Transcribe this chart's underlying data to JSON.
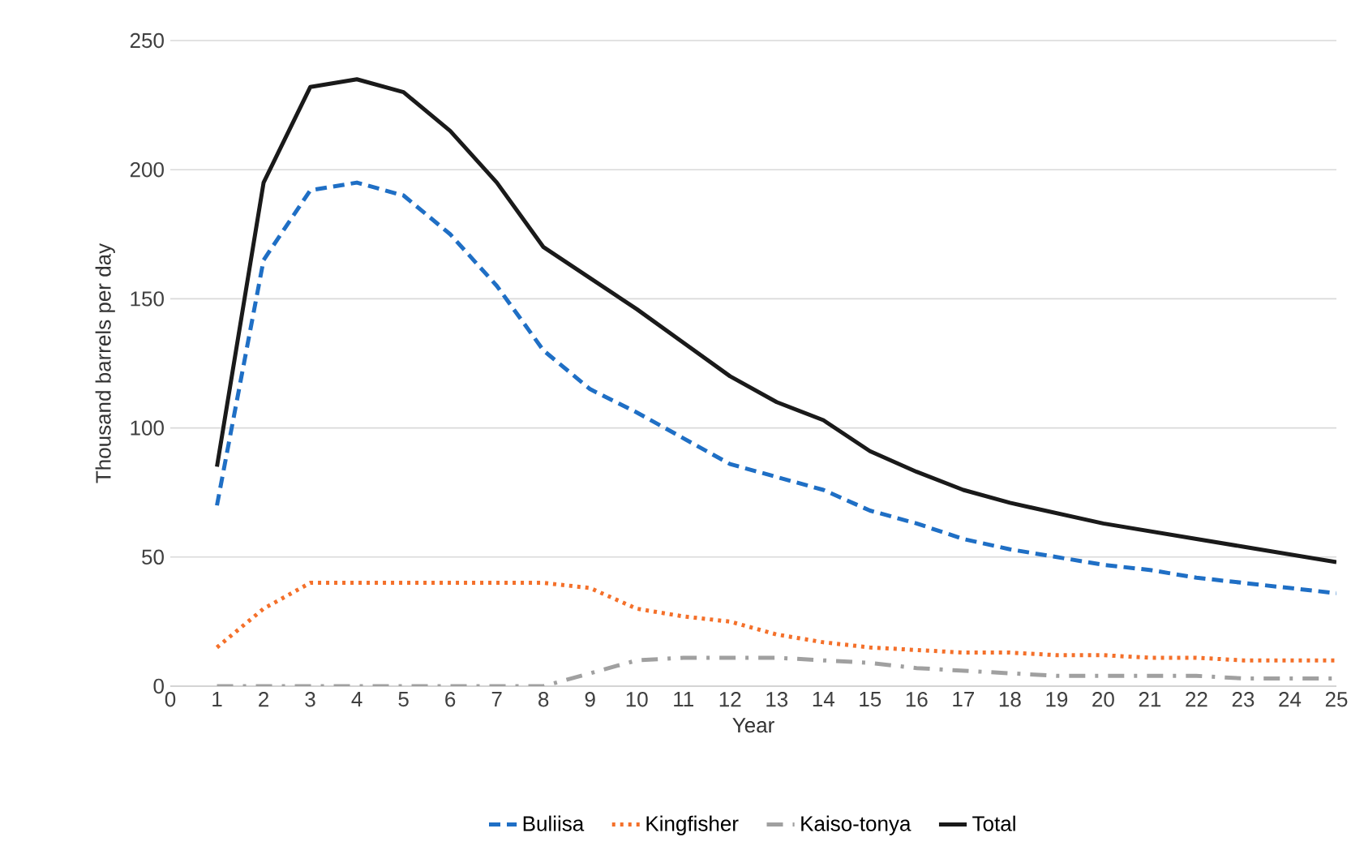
{
  "chart_data": {
    "type": "line",
    "ylabel": "Thousand barrels per day",
    "xlabel": "Year",
    "x": [
      1,
      2,
      3,
      4,
      5,
      6,
      7,
      8,
      9,
      10,
      11,
      12,
      13,
      14,
      15,
      16,
      17,
      18,
      19,
      20,
      21,
      22,
      23,
      24,
      25
    ],
    "xlim": [
      0,
      25
    ],
    "xticks": [
      0,
      1,
      2,
      3,
      4,
      5,
      6,
      7,
      8,
      9,
      10,
      11,
      12,
      13,
      14,
      15,
      16,
      17,
      18,
      19,
      20,
      21,
      22,
      23,
      24,
      25
    ],
    "ylim": [
      0,
      250
    ],
    "yticks": [
      0,
      50,
      100,
      150,
      200,
      250
    ],
    "grid": "y",
    "legend": "bottom",
    "marker": "none",
    "series": [
      {
        "name": "Buliisa",
        "color": "#1f6fc5",
        "line_style": "dashed",
        "values": [
          70,
          165,
          192,
          195,
          190,
          175,
          155,
          130,
          115,
          106,
          96,
          86,
          81,
          76,
          68,
          63,
          57,
          53,
          50,
          47,
          45,
          42,
          40,
          38,
          36
        ]
      },
      {
        "name": "Kingfisher",
        "color": "#f4702a",
        "line_style": "dotted",
        "values": [
          15,
          30,
          40,
          40,
          40,
          40,
          40,
          40,
          38,
          30,
          27,
          25,
          20,
          17,
          15,
          14,
          13,
          13,
          12,
          12,
          11,
          11,
          10,
          10,
          10
        ]
      },
      {
        "name": "Kaiso-tonya",
        "color": "#a0a0a0",
        "line_style": "dashdot",
        "values": [
          0,
          0,
          0,
          0,
          0,
          0,
          0,
          0,
          5,
          10,
          11,
          11,
          11,
          10,
          9,
          7,
          6,
          5,
          4,
          4,
          4,
          4,
          3,
          3,
          3
        ]
      },
      {
        "name": "Total",
        "color": "#1a1a1a",
        "line_style": "solid",
        "values": [
          85,
          195,
          232,
          235,
          230,
          215,
          195,
          170,
          158,
          146,
          133,
          120,
          110,
          103,
          91,
          83,
          76,
          71,
          67,
          63,
          60,
          57,
          54,
          51,
          48
        ]
      }
    ]
  }
}
